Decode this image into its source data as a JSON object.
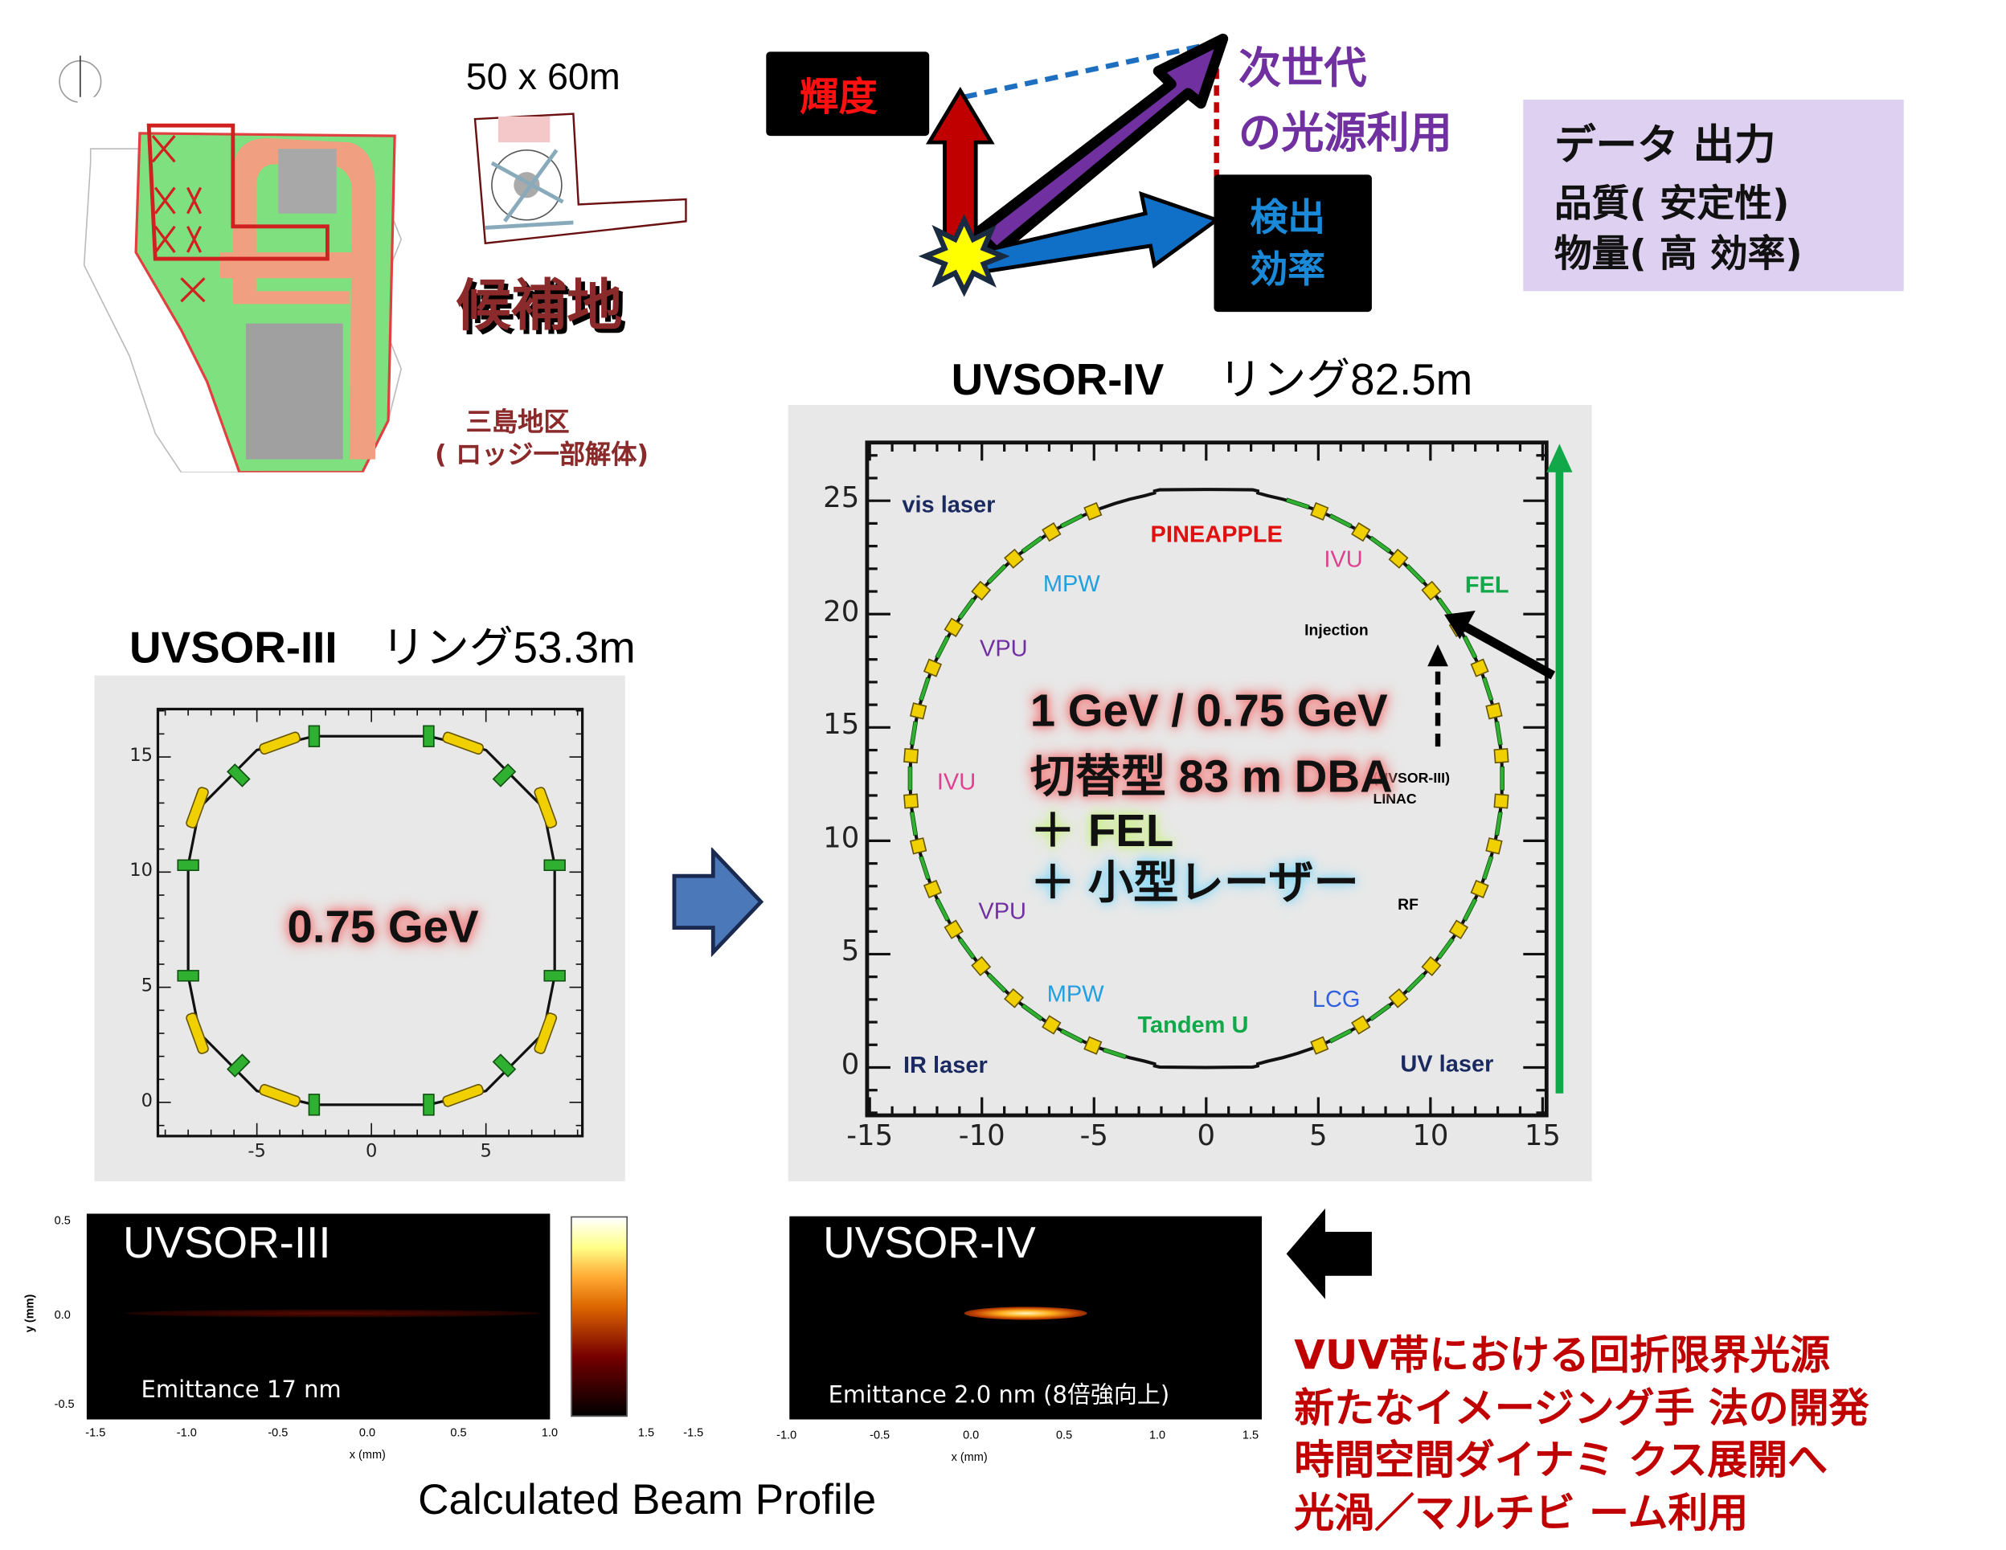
{
  "site": {
    "size_label": "50 x 60m",
    "candidate_label": "候補地",
    "area_label": "三島地区",
    "area_note": "( ロッジ一部解体)"
  },
  "concept": {
    "brightness_label": "輝度",
    "next_gen_line1": "次世代",
    "next_gen_line2": "の光源利用",
    "detection_line1": "検出",
    "detection_line2": "効率",
    "colors": {
      "red_arrow": "#c00000",
      "purple_arrow": "#7030a0",
      "blue_arrow": "#0070c0"
    }
  },
  "data_box": {
    "title": "データ 出力",
    "line1": "品質( 安定性)",
    "line2": "物量( 高 効率)"
  },
  "uvsor4": {
    "title": "UVSOR-IV",
    "ring_label": "リング82.5m",
    "x_ticks": [
      "-15",
      "-10",
      "-5",
      "0",
      "5",
      "10",
      "15"
    ],
    "y_ticks": [
      "0",
      "5",
      "10",
      "15",
      "20",
      "25"
    ],
    "labels": {
      "vis_laser": "vis laser",
      "pineapple": "PINEAPPLE",
      "ivu_top": "IVU",
      "fel": "FEL",
      "mpw_top": "MPW",
      "injection": "Injection",
      "vpu_top": "VPU",
      "ivu_left": "IVU",
      "linac1": "(UVSOR-III)",
      "linac2": "LINAC",
      "rf": "RF",
      "vpu_bottom": "VPU",
      "mpw_bottom": "MPW",
      "lcg": "LCG",
      "tandem": "Tandem U",
      "ir_laser": "IR laser",
      "uv_laser": "UV laser"
    },
    "overlay": {
      "energy": "1 GeV / 0.75 GeV",
      "type": "切替型 83 m DBA",
      "fel": "＋ FEL",
      "laser": "＋ 小型レーザー"
    }
  },
  "uvsor3": {
    "title": "UVSOR-III",
    "ring_label": "リング53.3m",
    "x_ticks": [
      "-5",
      "0",
      "5"
    ],
    "y_ticks": [
      "0",
      "5",
      "10",
      "15"
    ],
    "energy": "0.75 GeV"
  },
  "beam": {
    "left": {
      "title": "UVSOR-III",
      "emittance": "Emittance  17  nm",
      "x_ticks": [
        "-1.5",
        "-1.0",
        "-0.5",
        "0.0",
        "0.5",
        "1.0"
      ],
      "y_ticks": [
        "0.5",
        "0.0",
        "-0.5"
      ],
      "xlabel": "x (mm)",
      "ylabel": "y (mm)"
    },
    "right": {
      "title": "UVSOR-IV",
      "emittance": "Emittance   2.0  nm (8倍強向上)",
      "x_ticks": [
        "-1.0",
        "-0.5",
        "0.0",
        "0.5",
        "1.0",
        "1.5"
      ],
      "x_ticks_prefix": [
        "1.5",
        "-1.5"
      ],
      "xlabel": "x (mm)"
    },
    "caption": "Calculated Beam Profile"
  },
  "goals": [
    "VUV帯における回折限界光源",
    "新たなイメージング手 法の開発",
    "時間空間ダイナミ クス展開へ",
    "光渦／マルチビ ーム利用"
  ]
}
